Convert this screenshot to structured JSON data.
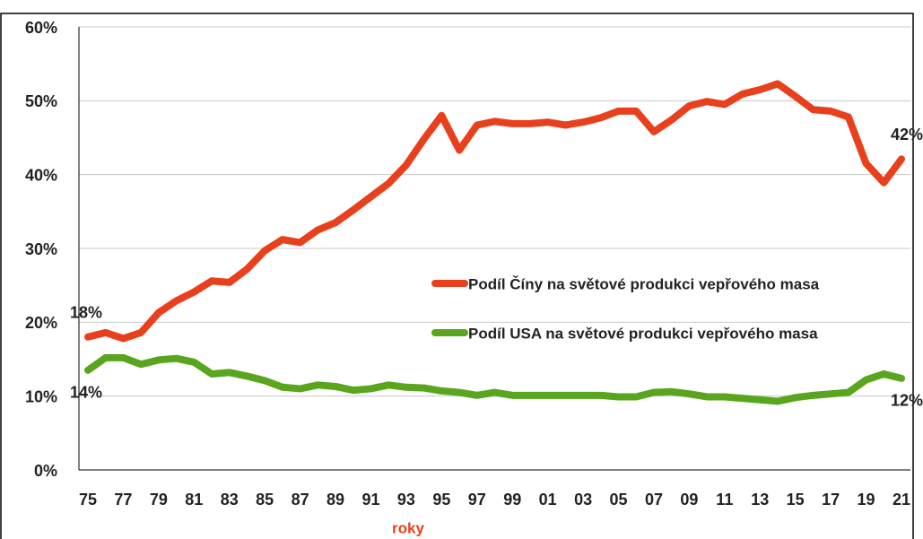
{
  "chart_data": {
    "type": "line",
    "x_label": "roky",
    "categories": [
      "75",
      null,
      "77",
      null,
      "79",
      null,
      "81",
      null,
      "83",
      null,
      "85",
      null,
      "87",
      null,
      "89",
      null,
      "91",
      null,
      "93",
      null,
      "95",
      null,
      "97",
      null,
      "99",
      null,
      "01",
      null,
      "03",
      null,
      "05",
      null,
      "07",
      null,
      "09",
      null,
      "11",
      null,
      "13",
      null,
      "15",
      null,
      "17",
      null,
      "19",
      null,
      "21"
    ],
    "series": [
      {
        "name": "Podíl Číny na světové produkci vepřového masa",
        "color": "#e8401c",
        "values": [
          18.0,
          18.6,
          17.8,
          18.6,
          21.3,
          22.9,
          24.1,
          25.6,
          25.4,
          27.2,
          29.7,
          31.2,
          30.8,
          32.5,
          33.5,
          35.2,
          37.0,
          38.8,
          41.3,
          44.8,
          48.0,
          43.3,
          46.7,
          47.2,
          46.9,
          46.9,
          47.1,
          46.7,
          47.1,
          47.7,
          48.6,
          48.6,
          45.8,
          47.4,
          49.3,
          49.9,
          49.5,
          50.9,
          51.5,
          52.3,
          50.6,
          48.8,
          48.6,
          47.8,
          41.5,
          38.9,
          42.1
        ],
        "end_labels": [
          "18%",
          "42%"
        ]
      },
      {
        "name": "Podíl USA na světové produkci vepřového masa",
        "color": "#5aa51e",
        "values": [
          13.5,
          15.2,
          15.2,
          14.3,
          14.9,
          15.1,
          14.6,
          13.0,
          13.2,
          12.7,
          12.1,
          11.2,
          11.0,
          11.5,
          11.3,
          10.8,
          11.0,
          11.5,
          11.2,
          11.1,
          10.7,
          10.5,
          10.1,
          10.5,
          10.1,
          10.1,
          10.1,
          10.1,
          10.1,
          10.1,
          9.9,
          9.9,
          10.5,
          10.6,
          10.3,
          9.9,
          9.9,
          9.7,
          9.5,
          9.3,
          9.8,
          10.1,
          10.3,
          10.5,
          12.2,
          13.0,
          12.4
        ],
        "end_labels": [
          "14%",
          "12%"
        ]
      }
    ],
    "ylim": [
      0,
      60
    ],
    "yticks": [
      {
        "value": 0,
        "label": "0%"
      },
      {
        "value": 10,
        "label": "10%"
      },
      {
        "value": 20,
        "label": "20%"
      },
      {
        "value": 30,
        "label": "30%"
      },
      {
        "value": 40,
        "label": "40%"
      },
      {
        "value": 50,
        "label": "50%"
      },
      {
        "value": 60,
        "label": "60%"
      }
    ],
    "grid": true,
    "legend": "right"
  }
}
